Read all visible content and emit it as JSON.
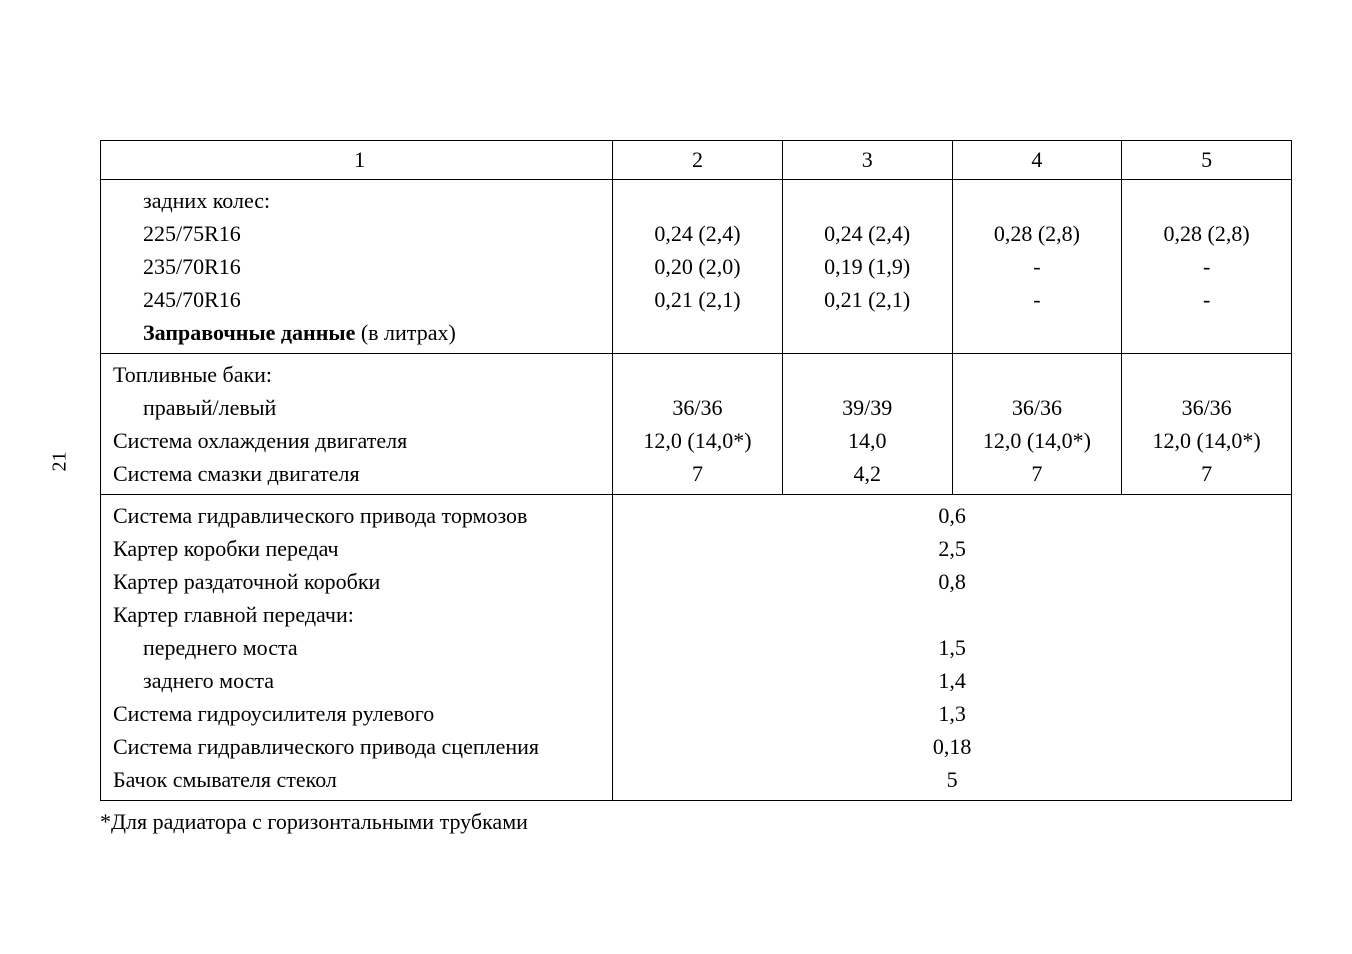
{
  "page_number": "21",
  "header": {
    "col1": "1",
    "col2": "2",
    "col3": "3",
    "col4": "4",
    "col5": "5"
  },
  "rear_wheels": {
    "title": "задних колес:",
    "row_225": {
      "label": "225/75R16",
      "c2": "0,24 (2,4)",
      "c3": "0,24 (2,4)",
      "c4": "0,28 (2,8)",
      "c5": "0,28 (2,8)"
    },
    "row_235": {
      "label": "235/70R16",
      "c2": "0,20 (2,0)",
      "c3": "0,19 (1,9)",
      "c4": "-",
      "c5": "-"
    },
    "row_245": {
      "label": "245/70R16",
      "c2": "0,21 (2,1)",
      "c3": "0,21 (2,1)",
      "c4": "-",
      "c5": "-"
    }
  },
  "fill_header": {
    "bold": "Заправочные данные",
    "rest": " (в литрах)"
  },
  "fuel_tanks": {
    "title": "Топливные баки:",
    "label": "правый/левый",
    "c2": "36/36",
    "c3": "39/39",
    "c4": "36/36",
    "c5": "36/36"
  },
  "cooling": {
    "label": "Система охлаждения двигателя",
    "c2": "12,0 (14,0*)",
    "c3": "14,0",
    "c4": "12,0 (14,0*)",
    "c5": "12,0 (14,0*)"
  },
  "lubrication": {
    "label": "Система смазки двигателя",
    "c2": "7",
    "c3": "4,2",
    "c4": "7",
    "c5": "7"
  },
  "hydraulic_brakes": {
    "label": "Система гидравлического привода тормозов",
    "value": "0,6"
  },
  "gearbox": {
    "label": "Картер коробки передач",
    "value": "2,5"
  },
  "transfer_case": {
    "label": "Картер раздаточной коробки",
    "value": "0,8"
  },
  "final_drive": {
    "title": "Картер главной передачи:",
    "front_label": "переднего моста",
    "front_value": "1,5",
    "rear_label": "заднего моста",
    "rear_value": "1,4"
  },
  "power_steering": {
    "label": "Система гидроусилителя рулевого",
    "value": "1,3"
  },
  "clutch": {
    "label": "Система гидравлического привода сцепления",
    "value": "0,18"
  },
  "washer": {
    "label": "Бачок смывателя стекол",
    "value": "5"
  },
  "footnote": "*Для радиатора с горизонтальными трубками"
}
